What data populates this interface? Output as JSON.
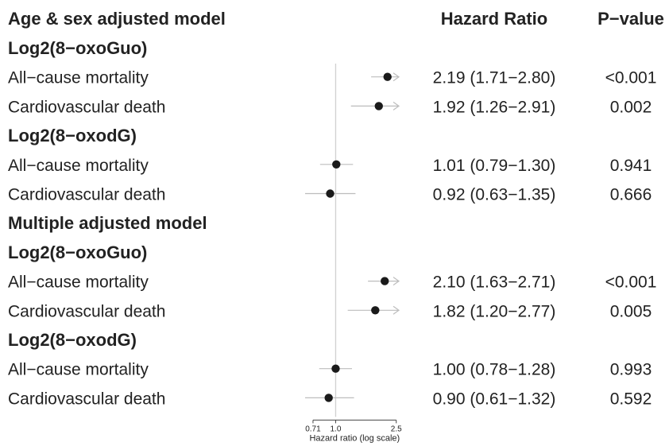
{
  "header": {
    "title": "Age & sex adjusted model",
    "hr_col": "Hazard Ratio",
    "p_col": "P−value"
  },
  "chart_data": {
    "type": "forest",
    "x_scale": "log",
    "xlim": [
      0.63,
      2.6
    ],
    "xlabel": "Hazard ratio (log scale)",
    "xticks": [
      0.71,
      1.0,
      2.5
    ],
    "xtick_labels": [
      "0.71",
      "1.0",
      "2.5"
    ],
    "reference_line": 1.0,
    "rows": [
      {
        "kind": "section",
        "label": "Log2(8−oxoGuo)"
      },
      {
        "kind": "data",
        "label": "All−cause mortality",
        "hr": 2.19,
        "lo": 1.71,
        "hi": 2.8,
        "ci_text": "2.19 (1.71−2.80)",
        "p": "<0.001"
      },
      {
        "kind": "data",
        "label": "Cardiovascular death",
        "hr": 1.92,
        "lo": 1.26,
        "hi": 2.91,
        "ci_text": "1.92 (1.26−2.91)",
        "p": "0.002"
      },
      {
        "kind": "section",
        "label": "Log2(8−oxodG)"
      },
      {
        "kind": "data",
        "label": "All−cause mortality",
        "hr": 1.01,
        "lo": 0.79,
        "hi": 1.3,
        "ci_text": "1.01 (0.79−1.30)",
        "p": "0.941"
      },
      {
        "kind": "data",
        "label": "Cardiovascular death",
        "hr": 0.92,
        "lo": 0.63,
        "hi": 1.35,
        "ci_text": "0.92 (0.63−1.35)",
        "p": "0.666"
      },
      {
        "kind": "section",
        "label": "Multiple adjusted model"
      },
      {
        "kind": "section",
        "label": "Log2(8−oxoGuo)"
      },
      {
        "kind": "data",
        "label": "All−cause mortality",
        "hr": 2.1,
        "lo": 1.63,
        "hi": 2.71,
        "ci_text": "2.10 (1.63−2.71)",
        "p": "<0.001"
      },
      {
        "kind": "data",
        "label": "Cardiovascular death",
        "hr": 1.82,
        "lo": 1.2,
        "hi": 2.77,
        "ci_text": "1.82 (1.20−2.77)",
        "p": "0.005"
      },
      {
        "kind": "section",
        "label": "Log2(8−oxodG)"
      },
      {
        "kind": "data",
        "label": "All−cause mortality",
        "hr": 1.0,
        "lo": 0.78,
        "hi": 1.28,
        "ci_text": "1.00 (0.78−1.28)",
        "p": "0.993"
      },
      {
        "kind": "data",
        "label": "Cardiovascular death",
        "hr": 0.9,
        "lo": 0.61,
        "hi": 1.32,
        "ci_text": "0.90 (0.61−1.32)",
        "p": "0.592"
      }
    ]
  }
}
